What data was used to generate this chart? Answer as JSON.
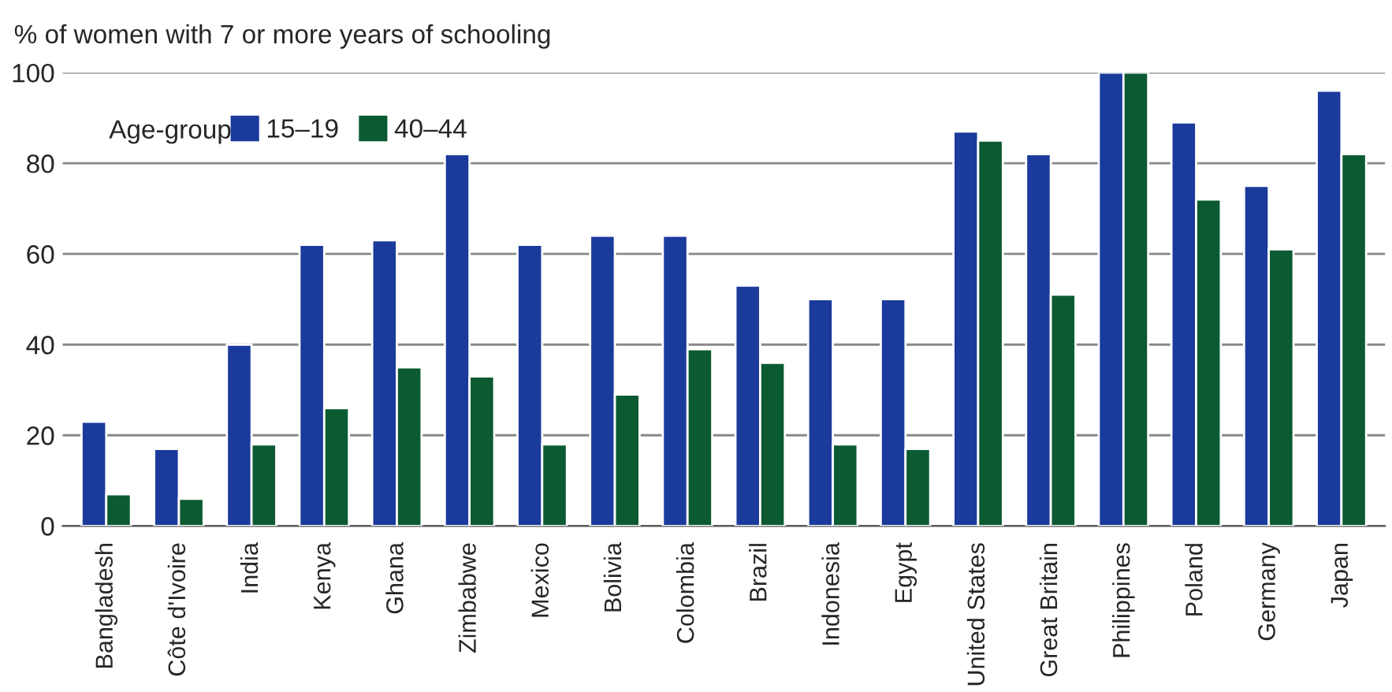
{
  "chart_data": {
    "type": "bar",
    "ylabel": "% of women with 7 or more years of schooling",
    "categories": [
      "Bangladesh",
      "Côte d'Ivoire",
      "India",
      "Kenya",
      "Ghana",
      "Zimbabwe",
      "Mexico",
      "Bolivia",
      "Colombia",
      "Brazil",
      "Indonesia",
      "Egypt",
      "United States",
      "Great Britain",
      "Philippines",
      "Poland",
      "Germany",
      "Japan"
    ],
    "series": [
      {
        "name": "15–19",
        "color": "#1a3a9c",
        "values": [
          23,
          17,
          40,
          62,
          63,
          82,
          62,
          64,
          64,
          53,
          50,
          50,
          87,
          82,
          100,
          89,
          75,
          96
        ]
      },
      {
        "name": "40–44",
        "color": "#0b5a32",
        "values": [
          7,
          6,
          18,
          26,
          35,
          33,
          18,
          29,
          39,
          36,
          18,
          17,
          85,
          51,
          100,
          72,
          61,
          82
        ]
      }
    ],
    "legend_title": "Age-group",
    "legend": "top left",
    "ylim": [
      0,
      100
    ],
    "yticks": [
      0,
      20,
      40,
      60,
      80,
      100
    ],
    "grid": "y"
  }
}
